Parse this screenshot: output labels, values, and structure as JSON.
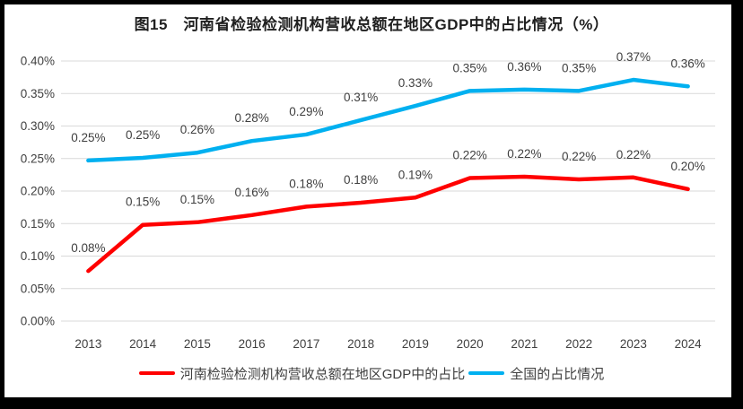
{
  "chart_data": {
    "type": "line",
    "title": "图15　河南省检验检测机构营收总额在地区GDP中的占比情况（%）",
    "categories": [
      "2013",
      "2014",
      "2015",
      "2016",
      "2017",
      "2018",
      "2019",
      "2020",
      "2021",
      "2022",
      "2023",
      "2024"
    ],
    "series": [
      {
        "name": "河南检验检测机构营收总额在地区GDP中的占比",
        "color": "#FF0000",
        "values": [
          0.08,
          0.15,
          0.15,
          0.16,
          0.18,
          0.18,
          0.19,
          0.22,
          0.22,
          0.22,
          0.22,
          0.2
        ],
        "plot_values": [
          0.077,
          0.148,
          0.152,
          0.163,
          0.176,
          0.182,
          0.19,
          0.22,
          0.222,
          0.218,
          0.221,
          0.203
        ]
      },
      {
        "name": "全国的占比情况",
        "color": "#00B0F0",
        "values": [
          0.25,
          0.25,
          0.26,
          0.28,
          0.29,
          0.31,
          0.33,
          0.35,
          0.36,
          0.35,
          0.37,
          0.36
        ],
        "plot_values": [
          0.247,
          0.251,
          0.259,
          0.277,
          0.287,
          0.309,
          0.331,
          0.354,
          0.356,
          0.354,
          0.371,
          0.361
        ]
      }
    ],
    "ylim": [
      0,
      0.4
    ],
    "ytick_step": 0.05,
    "ytick_format": "0.00%",
    "grid": true,
    "legend_position": "bottom",
    "grid_color": "#D9D9D9",
    "axis_label_color": "#404040",
    "data_label_color": "#3F3F3F"
  }
}
